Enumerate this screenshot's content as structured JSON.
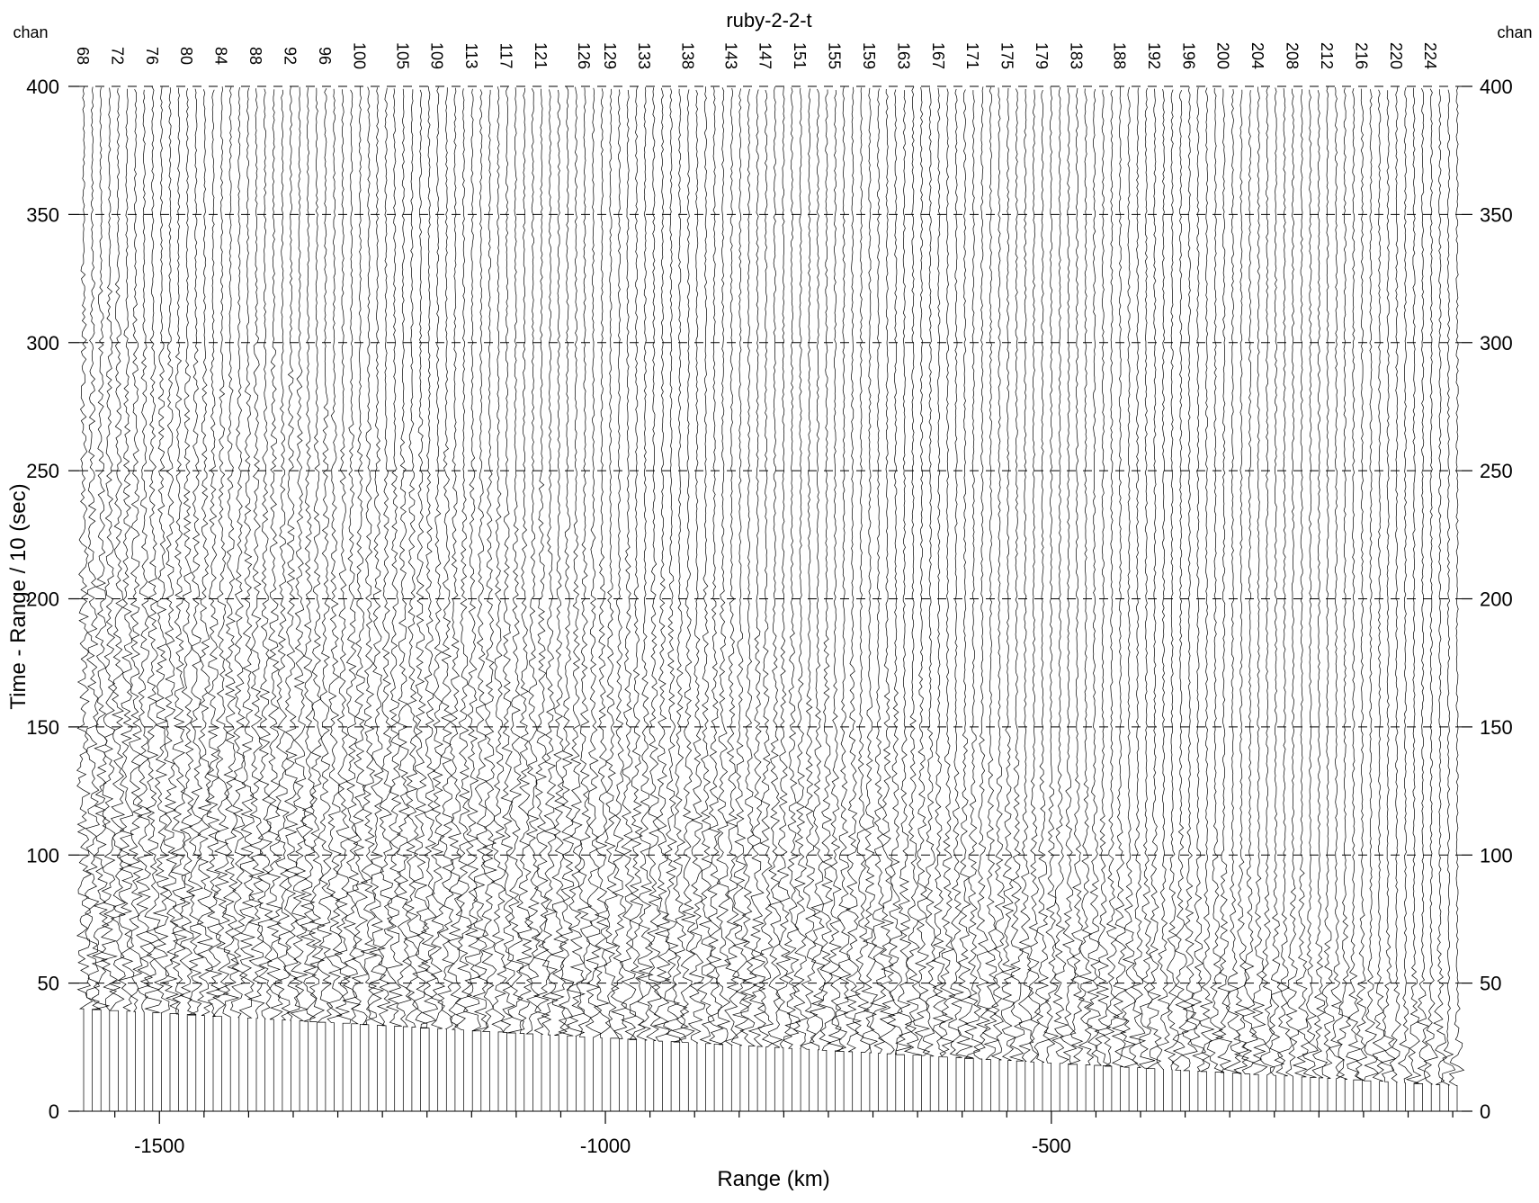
{
  "chart_data": {
    "type": "line",
    "title": "ruby-2-2-t",
    "xlabel": "Range (km)",
    "ylabel": "Time - Range / 10 (sec)",
    "corner_label_left": "chan",
    "corner_label_right": "chan",
    "xlim": [
      -1590,
      -40
    ],
    "ylim": [
      0,
      400
    ],
    "x_ticks": [
      -1500,
      -1000,
      -500
    ],
    "y_ticks": [
      0,
      50,
      100,
      150,
      200,
      250,
      300,
      350,
      400
    ],
    "y_grid": "dashed",
    "channel_labels": [
      "68",
      "72",
      "76",
      "80",
      "84",
      "88",
      "92",
      "96",
      "100",
      "105",
      "109",
      "113",
      "117",
      "121",
      "126",
      "129",
      "133",
      "138",
      "143",
      "147",
      "151",
      "155",
      "159",
      "163",
      "167",
      "171",
      "175",
      "179",
      "183",
      "188",
      "192",
      "196",
      "200",
      "204",
      "208",
      "212",
      "216",
      "220",
      "224"
    ],
    "traces": {
      "description_of_marks": "seismic record section, one vertical wiggle trace per channel",
      "channel_start": 68,
      "channel_end": 227,
      "range_start_km": -1585,
      "range_end_km": -45,
      "first_arrival_time_near_km": 40,
      "first_arrival_time_far_km": 10,
      "signal_end_time_near_km": 325,
      "signal_end_time_far_km": 50
    }
  }
}
